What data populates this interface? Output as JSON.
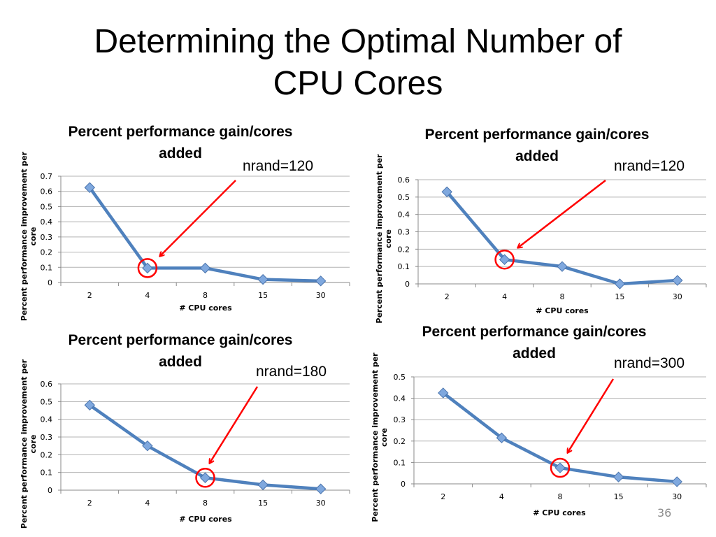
{
  "slide": {
    "title_line1": "Determining the Optimal Number of",
    "title_line2": "CPU Cores",
    "page_number": "36"
  },
  "colors": {
    "series": "#4f81bd",
    "marker": "#7fa8de",
    "highlight": "#ff0000",
    "grid": "#b3b3b3"
  },
  "chart_data": [
    {
      "type": "line",
      "title_line1": "Percent performance gain/cores",
      "title_line2": "added",
      "annotation": "nrand=120",
      "xlabel": "# CPU cores",
      "ylabel": "Percent performance improvement per core",
      "categories": [
        "2",
        "4",
        "8",
        "15",
        "30"
      ],
      "values": [
        0.625,
        0.095,
        0.095,
        0.02,
        0.01
      ],
      "ylim": [
        0,
        0.7
      ],
      "yticks": [
        "0",
        "0.1",
        "0.2",
        "0.3",
        "0.4",
        "0.5",
        "0.6",
        "0.7"
      ],
      "highlighted_category": "4",
      "grid": true
    },
    {
      "type": "line",
      "title_line1": "Percent performance gain/cores",
      "title_line2": "added",
      "annotation": "nrand=120",
      "xlabel": "# CPU cores",
      "ylabel": "Percent performance improvement per core",
      "categories": [
        "2",
        "4",
        "8",
        "15",
        "30"
      ],
      "values": [
        0.53,
        0.14,
        0.1,
        0.0,
        0.02
      ],
      "ylim": [
        0,
        0.6
      ],
      "yticks": [
        "0",
        "0.1",
        "0.2",
        "0.3",
        "0.4",
        "0.5",
        "0.6"
      ],
      "highlighted_category": "4",
      "grid": true
    },
    {
      "type": "line",
      "title_line1": "Percent performance gain/cores",
      "title_line2": "added",
      "annotation": "nrand=180",
      "xlabel": "# CPU cores",
      "ylabel": "Percent performance improvement per core",
      "categories": [
        "2",
        "4",
        "8",
        "15",
        "30"
      ],
      "values": [
        0.48,
        0.25,
        0.07,
        0.03,
        0.007
      ],
      "ylim": [
        0,
        0.6
      ],
      "yticks": [
        "0",
        "0.1",
        "0.2",
        "0.3",
        "0.4",
        "0.5",
        "0.6"
      ],
      "highlighted_category": "8",
      "grid": true
    },
    {
      "type": "line",
      "title_line1": "Percent performance gain/cores",
      "title_line2": "added",
      "annotation": "nrand=300",
      "xlabel": "# CPU cores",
      "ylabel": "Percent performance improvement per core",
      "categories": [
        "2",
        "4",
        "8",
        "15",
        "30"
      ],
      "values": [
        0.425,
        0.215,
        0.075,
        0.032,
        0.01
      ],
      "ylim": [
        0,
        0.5
      ],
      "yticks": [
        "0",
        "0.1",
        "0.2",
        "0.3",
        "0.4",
        "0.5"
      ],
      "highlighted_category": "8",
      "grid": true
    }
  ]
}
